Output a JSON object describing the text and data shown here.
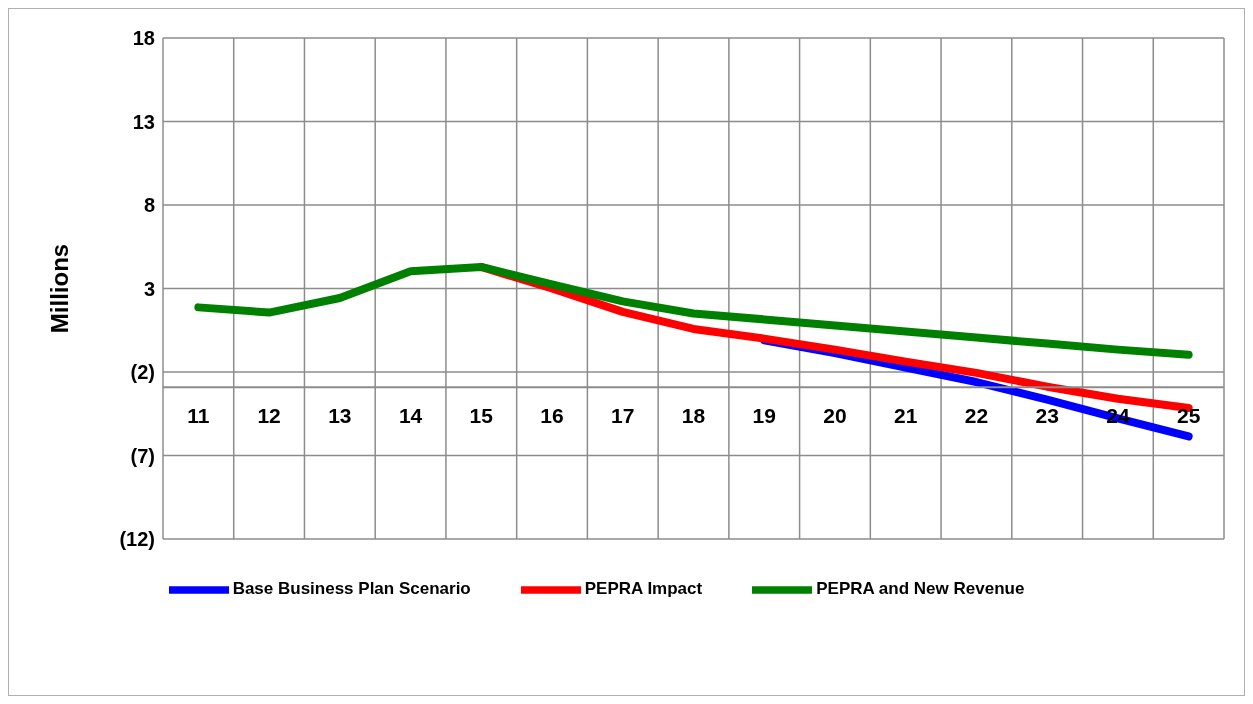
{
  "chart_data": {
    "type": "line",
    "ylabel": "Millions",
    "categories": [
      "11",
      "12",
      "13",
      "14",
      "15",
      "16",
      "17",
      "18",
      "19",
      "20",
      "21",
      "22",
      "23",
      "24",
      "25"
    ],
    "series": [
      {
        "name": "Base Business Plan Scenario",
        "color": "#0000ff",
        "values": [
          null,
          null,
          null,
          null,
          null,
          null,
          null,
          null,
          -0.1,
          -0.87,
          -1.74,
          -2.6,
          -3.65,
          -4.78,
          -5.86
        ]
      },
      {
        "name": "PEPRA Impact",
        "color": "#ff0000",
        "values": [
          null,
          null,
          null,
          null,
          4.29,
          3.0,
          1.6,
          0.58,
          0.0,
          -0.66,
          -1.38,
          -2.05,
          -2.88,
          -3.6,
          -4.16
        ]
      },
      {
        "name": "PEPRA and New Revenue",
        "color": "#008000",
        "values": [
          1.87,
          1.56,
          2.43,
          4.03,
          4.29,
          3.25,
          2.23,
          1.5,
          1.15,
          0.78,
          0.42,
          0.06,
          -0.3,
          -0.66,
          -0.97
        ]
      }
    ],
    "ylim": [
      -12,
      18
    ],
    "yticks": [
      18,
      13,
      8,
      3,
      {
        "value": -2,
        "label": "(2)"
      },
      {
        "value": -7,
        "label": "(7)"
      },
      {
        "value": -12,
        "label": "(12)"
      }
    ],
    "grid": true,
    "legend": "bottom",
    "marker": "none",
    "line_style": "solid"
  }
}
